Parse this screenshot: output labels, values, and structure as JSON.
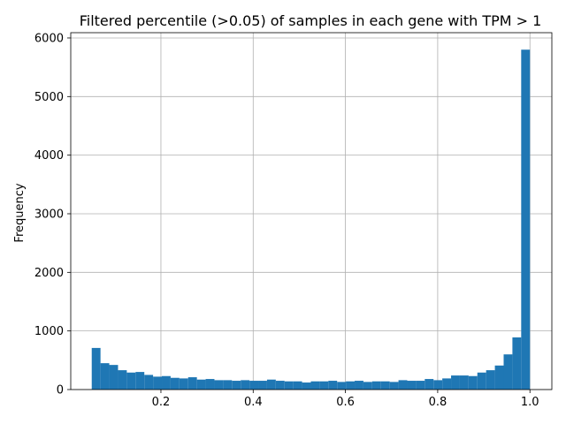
{
  "chart_data": {
    "type": "bar",
    "title": "Filtered percentile (>0.05) of samples in each gene with TPM > 1",
    "xlabel": "",
    "ylabel": "Frequency",
    "xlim": [
      0.0045,
      1.0475
    ],
    "ylim": [
      0,
      6090
    ],
    "xticks": [
      0.2,
      0.4,
      0.6,
      0.8,
      1.0
    ],
    "xtick_labels": [
      "0.2",
      "0.4",
      "0.6",
      "0.8",
      "1.0"
    ],
    "yticks": [
      0,
      1000,
      2000,
      3000,
      4000,
      5000,
      6000
    ],
    "ytick_labels": [
      "0",
      "1000",
      "2000",
      "3000",
      "4000",
      "5000",
      "6000"
    ],
    "grid": true,
    "color": "#1f77b4",
    "bin_start": 0.05,
    "bin_width": 0.019,
    "values": [
      710,
      450,
      420,
      330,
      290,
      300,
      250,
      220,
      230,
      200,
      190,
      210,
      170,
      180,
      160,
      160,
      150,
      160,
      150,
      150,
      170,
      150,
      140,
      140,
      120,
      140,
      140,
      150,
      130,
      140,
      150,
      130,
      140,
      140,
      130,
      160,
      150,
      150,
      180,
      160,
      190,
      240,
      240,
      230,
      290,
      330,
      410,
      600,
      890,
      5800
    ]
  }
}
